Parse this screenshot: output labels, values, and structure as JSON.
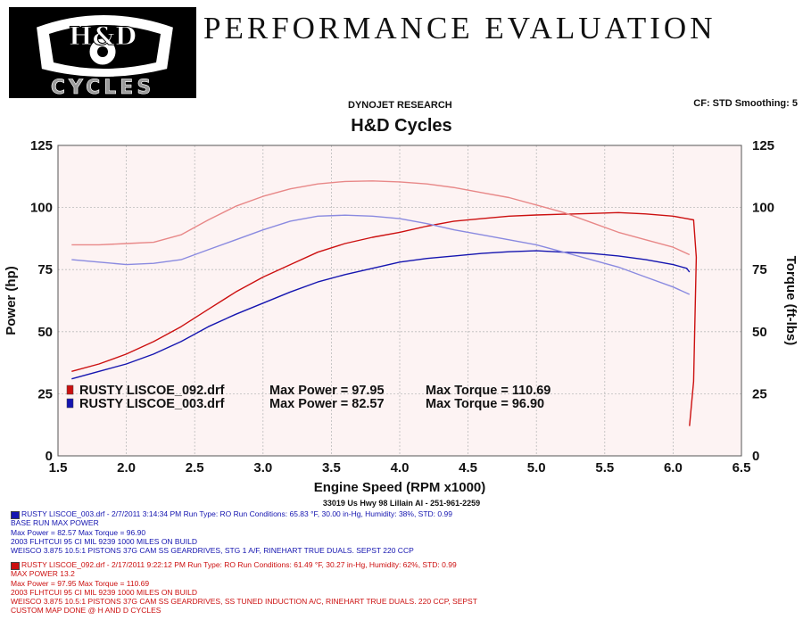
{
  "header": {
    "logo_top_text": "H&D",
    "logo_bottom_text": "CYCLES",
    "title": "PERFORMANCE EVALUATION",
    "dynojet": "DYNOJET RESEARCH",
    "cf_smoothing": "CF: STD  Smoothing: 5",
    "shop_name": "H&D Cycles"
  },
  "colors": {
    "red_run": "#cc1010",
    "red_run_torque": "#e88888",
    "blue_run": "#1515b0",
    "blue_run_torque": "#8a8ae0",
    "plot_background": "#fdf3f3"
  },
  "legend": [
    {
      "file": "RUSTY LISCOE_092.drf",
      "power_label": "Max Power = 97.95",
      "torque_label": "Max Torque = 110.69",
      "color": "#cc1010"
    },
    {
      "file": "RUSTY LISCOE_003.drf",
      "power_label": "Max Power = 82.57",
      "torque_label": "Max Torque = 96.90",
      "color": "#1515b0"
    }
  ],
  "chart_data": {
    "type": "line",
    "xlabel": "Engine Speed (RPM x1000)",
    "ylabel_left": "Power (hp)",
    "ylabel_right": "Torque (ft-lbs)",
    "xlim": [
      1.5,
      6.5
    ],
    "ylim": [
      0,
      125
    ],
    "x_ticks": [
      "1.5",
      "2.0",
      "2.5",
      "3.0",
      "3.5",
      "4.0",
      "4.5",
      "5.0",
      "5.5",
      "6.0",
      "6.5"
    ],
    "y_ticks": [
      "0",
      "25",
      "50",
      "75",
      "100",
      "125"
    ],
    "grid": true,
    "series": [
      {
        "name": "RUSTY LISCOE_092.drf Max Power = 97.95",
        "quantity": "power",
        "color": "#cc1010",
        "x": [
          1.6,
          1.8,
          2.0,
          2.2,
          2.4,
          2.6,
          2.8,
          3.0,
          3.2,
          3.4,
          3.6,
          3.8,
          4.0,
          4.2,
          4.4,
          4.6,
          4.8,
          5.0,
          5.2,
          5.4,
          5.6,
          5.8,
          6.0,
          6.1,
          6.15,
          6.17,
          6.15,
          6.12
        ],
        "y": [
          34,
          37,
          41,
          46,
          52,
          59,
          66,
          72,
          77,
          82,
          85.5,
          88,
          90,
          92.5,
          94.5,
          95.5,
          96.5,
          97,
          97.3,
          97.6,
          97.95,
          97.4,
          96.5,
          95.5,
          95,
          80,
          30,
          12
        ]
      },
      {
        "name": "RUSTY LISCOE_092.drf Max Torque = 110.69",
        "quantity": "torque",
        "color": "#e88888",
        "x": [
          1.6,
          1.8,
          2.0,
          2.2,
          2.4,
          2.6,
          2.8,
          3.0,
          3.2,
          3.4,
          3.6,
          3.8,
          4.0,
          4.2,
          4.4,
          4.6,
          4.8,
          5.0,
          5.2,
          5.4,
          5.6,
          5.8,
          6.0,
          6.12
        ],
        "y": [
          85,
          85,
          85.5,
          86,
          89,
          95,
          100.5,
          104.5,
          107.5,
          109.5,
          110.5,
          110.69,
          110.3,
          109.5,
          108,
          106,
          104,
          101,
          98,
          94,
          90,
          87,
          84,
          81
        ]
      },
      {
        "name": "RUSTY LISCOE_003.drf Max Power = 82.57",
        "quantity": "power",
        "color": "#1515b0",
        "x": [
          1.6,
          1.8,
          2.0,
          2.2,
          2.4,
          2.6,
          2.8,
          3.0,
          3.2,
          3.4,
          3.6,
          3.8,
          4.0,
          4.2,
          4.4,
          4.6,
          4.8,
          5.0,
          5.2,
          5.4,
          5.6,
          5.8,
          6.0,
          6.1,
          6.12
        ],
        "y": [
          31,
          34,
          37,
          41,
          46,
          52,
          57,
          61.5,
          66,
          70,
          73,
          75.5,
          78,
          79.5,
          80.5,
          81.5,
          82.2,
          82.57,
          82,
          81.5,
          80.5,
          79,
          77,
          75.5,
          74
        ]
      },
      {
        "name": "RUSTY LISCOE_003.drf Max Torque = 96.90",
        "quantity": "torque",
        "color": "#8a8ae0",
        "x": [
          1.6,
          1.8,
          2.0,
          2.2,
          2.4,
          2.6,
          2.8,
          3.0,
          3.2,
          3.4,
          3.6,
          3.8,
          4.0,
          4.2,
          4.4,
          4.6,
          4.8,
          5.0,
          5.2,
          5.4,
          5.6,
          5.8,
          6.0,
          6.12
        ],
        "y": [
          79,
          78,
          77,
          77.5,
          79,
          83,
          87,
          91,
          94.5,
          96.5,
          96.9,
          96.5,
          95.5,
          93.5,
          91,
          89,
          87,
          85,
          82,
          79,
          76,
          72,
          68,
          65
        ]
      }
    ]
  },
  "address": "33019 Us Hwy 98 Lillain Al - 251-961-2259",
  "runs": [
    {
      "id": "blue",
      "color": "#1515b0",
      "lines": [
        "RUSTY LISCOE_003.drf - 2/7/2011 3:14:34 PM  Run Type: RO  Run Conditions: 65.83 °F, 30.00 in-Hg,  Humidity:  38%, STD: 0.99",
        "BASE RUN MAX POWER",
        "Max Power = 82.57  Max Torque = 96.90",
        "2003 FLHTCUI 95 CI MIL 9239 1000 MILES ON BUILD",
        "WEISCO 3.875 10.5:1 PISTONS 37G CAM SS GEARDRIVES, STG 1 A/F, RINEHART TRUE DUALS. SEPST 220 CCP"
      ]
    },
    {
      "id": "red",
      "color": "#cc1010",
      "lines": [
        "RUSTY LISCOE_092.drf - 2/17/2011 9:22:12 PM  Run Type: RO  Run Conditions: 61.49 °F, 30.27 in-Hg,  Humidity:  62%, STD: 0.99",
        "MAX POWER 13.2",
        "Max Power = 97.95  Max Torque = 110.69",
        "2003 FLHTCUI 95 CI MIL 9239 1000 MILES ON BUILD",
        "WEISCO 3.875 10.5:1 PISTONS 37G CAM SS GEARDRIVES, SS TUNED INDUCTION A/C, RINEHART TRUE DUALS. 220 CCP, SEPST",
        "CUSTOM MAP DONE @ H AND D CYCLES"
      ]
    }
  ]
}
